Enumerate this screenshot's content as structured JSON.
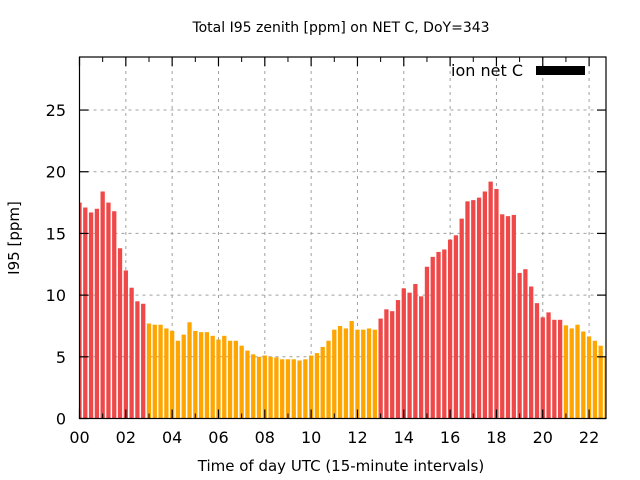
{
  "chart_data": {
    "type": "bar",
    "title": "Total I95 zenith [ppm] on NET C, DoY=343",
    "xlabel": "Time of day UTC (15-minute intervals)",
    "ylabel": "I95 [ppm]",
    "xlim": [
      0,
      22.73
    ],
    "ylim": [
      0,
      29.3
    ],
    "x_unit": "hours",
    "bar_interval_hours": 0.25,
    "grid": true,
    "legend": {
      "position": "top-right",
      "entries": [
        {
          "label": "ion net C",
          "color": "#000000"
        }
      ]
    },
    "xticks": [
      {
        "value": 0,
        "label": "00"
      },
      {
        "value": 2,
        "label": "02"
      },
      {
        "value": 4,
        "label": "04"
      },
      {
        "value": 6,
        "label": "06"
      },
      {
        "value": 8,
        "label": "08"
      },
      {
        "value": 10,
        "label": "10"
      },
      {
        "value": 12,
        "label": "12"
      },
      {
        "value": 14,
        "label": "14"
      },
      {
        "value": 16,
        "label": "16"
      },
      {
        "value": 18,
        "label": "18"
      },
      {
        "value": 20,
        "label": "20"
      },
      {
        "value": 22,
        "label": "22"
      }
    ],
    "yticks": [
      {
        "value": 0,
        "label": "0"
      },
      {
        "value": 5,
        "label": "5"
      },
      {
        "value": 10,
        "label": "10"
      },
      {
        "value": 15,
        "label": "15"
      },
      {
        "value": 20,
        "label": "20"
      },
      {
        "value": 25,
        "label": "25"
      }
    ],
    "colors": {
      "high": "#ef4848",
      "low": "#ffa500"
    },
    "series": [
      {
        "name": "ion net C",
        "values": [
          17.5,
          17.1,
          16.7,
          17.0,
          18.4,
          17.5,
          16.8,
          13.8,
          12.0,
          10.6,
          9.5,
          9.3,
          7.7,
          7.6,
          7.6,
          7.3,
          7.1,
          6.3,
          6.8,
          7.8,
          7.1,
          7.0,
          7.0,
          6.7,
          6.4,
          6.7,
          6.3,
          6.3,
          5.9,
          5.5,
          5.2,
          5.0,
          5.1,
          5.0,
          4.95,
          4.8,
          4.8,
          4.8,
          4.7,
          4.8,
          5.1,
          5.3,
          5.8,
          6.3,
          7.2,
          7.5,
          7.3,
          7.9,
          7.2,
          7.2,
          7.3,
          7.2,
          8.1,
          8.85,
          8.7,
          9.6,
          10.55,
          10.2,
          10.9,
          9.9,
          12.3,
          13.1,
          13.5,
          13.7,
          14.5,
          14.85,
          16.2,
          17.6,
          17.7,
          17.9,
          18.4,
          19.2,
          18.6,
          16.55,
          16.4,
          16.5,
          11.8,
          12.1,
          10.7,
          9.35,
          8.2,
          8.6,
          8.0,
          8.0,
          7.55,
          7.3,
          7.6,
          7.05,
          6.65,
          6.3,
          5.9,
          4.95
        ],
        "color_class": [
          "high",
          "high",
          "high",
          "high",
          "high",
          "high",
          "high",
          "high",
          "high",
          "high",
          "high",
          "high",
          "low",
          "low",
          "low",
          "low",
          "low",
          "low",
          "low",
          "low",
          "low",
          "low",
          "low",
          "low",
          "low",
          "low",
          "low",
          "low",
          "low",
          "low",
          "low",
          "low",
          "low",
          "low",
          "low",
          "low",
          "low",
          "low",
          "low",
          "low",
          "low",
          "low",
          "low",
          "low",
          "low",
          "low",
          "low",
          "low",
          "low",
          "low",
          "low",
          "low",
          "high",
          "high",
          "high",
          "high",
          "high",
          "high",
          "high",
          "high",
          "high",
          "high",
          "high",
          "high",
          "high",
          "high",
          "high",
          "high",
          "high",
          "high",
          "high",
          "high",
          "high",
          "high",
          "high",
          "high",
          "high",
          "high",
          "high",
          "high",
          "high",
          "high",
          "high",
          "high",
          "low",
          "low",
          "low",
          "low",
          "low",
          "low",
          "low",
          "low"
        ]
      }
    ]
  }
}
